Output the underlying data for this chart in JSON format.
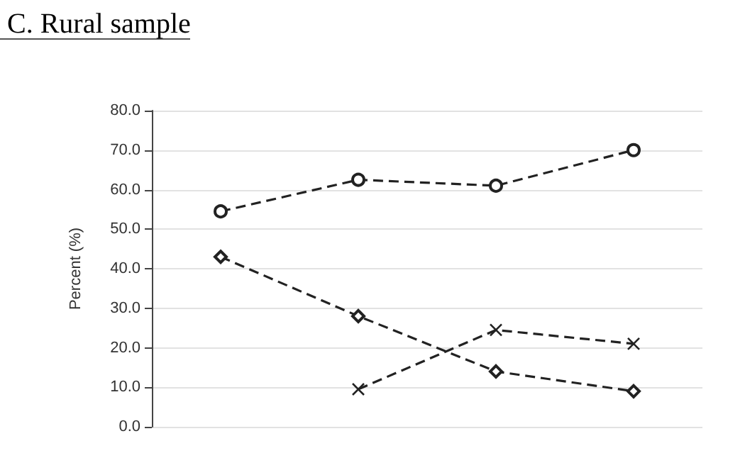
{
  "chart_data": {
    "type": "line",
    "title": "C. Rural sample",
    "ylabel": "Percent (%)",
    "categories": [
      null,
      null,
      null,
      null
    ],
    "series": [
      {
        "color": "#222222",
        "marker": "circle",
        "values": [
          54.5,
          62.5,
          61,
          70
        ]
      },
      {
        "color": "#222222",
        "marker": "diamond",
        "values": [
          43,
          28,
          14,
          9
        ]
      },
      {
        "color": "#222222",
        "marker": "cross",
        "values": [
          null,
          9.5,
          24.5,
          21
        ]
      }
    ],
    "ylim": [
      0,
      80
    ],
    "yticks": [
      {
        "value": 0,
        "label": "0.0"
      },
      {
        "value": 10,
        "label": "10.0"
      },
      {
        "value": 20,
        "label": "20.0"
      },
      {
        "value": 30,
        "label": "30.0"
      },
      {
        "value": 40,
        "label": "40.0"
      },
      {
        "value": 50,
        "label": "50.0"
      },
      {
        "value": 60,
        "label": "60.0"
      },
      {
        "value": 70,
        "label": "70.0"
      },
      {
        "value": 80,
        "label": "80.0"
      }
    ],
    "grid": "y",
    "line_style": "dashed"
  }
}
